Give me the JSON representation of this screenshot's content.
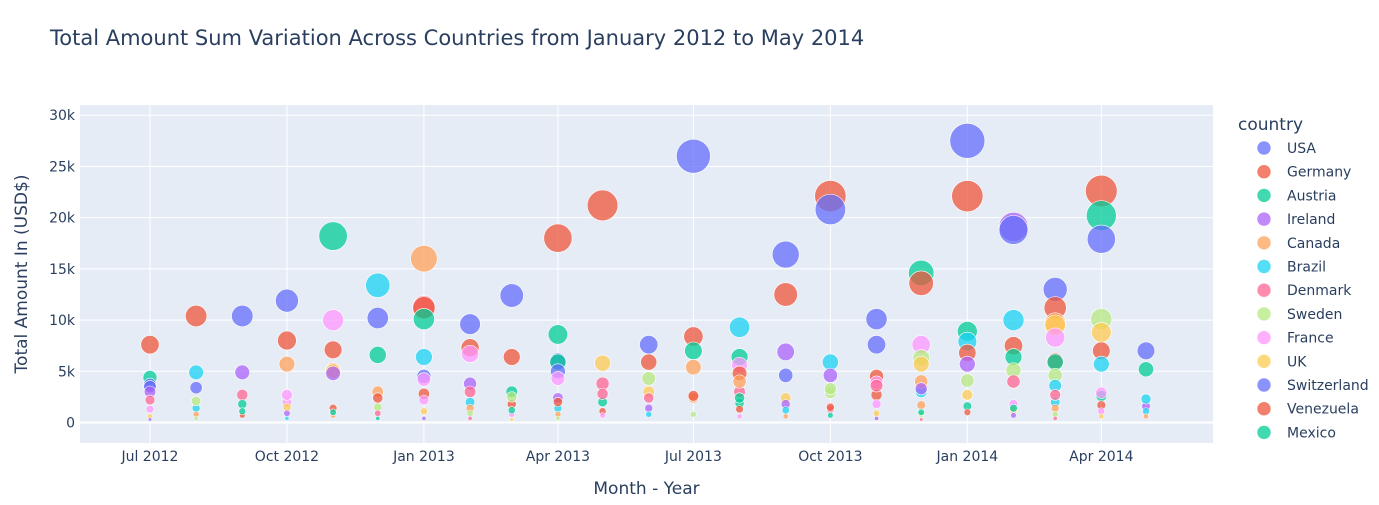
{
  "chart_data": {
    "type": "scatter",
    "title": "Total Amount Sum Variation Across Countries from January 2012 to May 2014",
    "xlabel": "Month - Year",
    "ylabel": "Total Amount In (USD$)",
    "xlim": [
      "2012-05-15",
      "2014-06-15"
    ],
    "ylim": [
      -2000,
      31000
    ],
    "x_ticks": [
      {
        "x": "2012-07-01",
        "label": "Jul 2012"
      },
      {
        "x": "2012-10-01",
        "label": "Oct 2012"
      },
      {
        "x": "2013-01-01",
        "label": "Jan 2013"
      },
      {
        "x": "2013-04-01",
        "label": "Apr 2013"
      },
      {
        "x": "2013-07-01",
        "label": "Jul 2013"
      },
      {
        "x": "2013-10-01",
        "label": "Oct 2013"
      },
      {
        "x": "2014-01-01",
        "label": "Jan 2014"
      },
      {
        "x": "2014-04-01",
        "label": "Apr 2014"
      }
    ],
    "y_ticks": [
      {
        "y": 0,
        "label": "0"
      },
      {
        "y": 5000,
        "label": "5k"
      },
      {
        "y": 10000,
        "label": "10k"
      },
      {
        "y": 15000,
        "label": "15k"
      },
      {
        "y": 20000,
        "label": "20k"
      },
      {
        "y": 25000,
        "label": "25k"
      },
      {
        "y": 30000,
        "label": "30k"
      }
    ],
    "grid": true,
    "marker_size": "proportional to value",
    "legend": {
      "title": "country",
      "placement": "right"
    },
    "series": [
      {
        "name": "USA",
        "color": "#636efa",
        "points": [
          [
            "2012-07-01",
            3500
          ],
          [
            "2013-01-01",
            4500
          ],
          [
            "2013-04-01",
            5000
          ],
          [
            "2013-07-01",
            26000
          ],
          [
            "2013-09-01",
            4600
          ],
          [
            "2013-10-01",
            20800
          ],
          [
            "2013-11-01",
            7600
          ],
          [
            "2014-01-01",
            27500
          ],
          [
            "2014-02-01",
            18800
          ],
          [
            "2014-04-01",
            17900
          ]
        ]
      },
      {
        "name": "Germany",
        "color": "#EF553B",
        "points": [
          [
            "2012-07-01",
            7600
          ],
          [
            "2012-08-01",
            10400
          ],
          [
            "2012-10-01",
            8000
          ],
          [
            "2012-11-01",
            7100
          ],
          [
            "2013-01-01",
            11200
          ],
          [
            "2013-02-01",
            7300
          ],
          [
            "2013-03-01",
            6400
          ],
          [
            "2013-04-01",
            18000
          ],
          [
            "2013-05-01",
            21200
          ],
          [
            "2013-06-01",
            5900
          ],
          [
            "2013-07-01",
            8400
          ],
          [
            "2013-09-01",
            12500
          ],
          [
            "2013-10-01",
            22100
          ],
          [
            "2013-12-01",
            13600
          ],
          [
            "2014-01-01",
            22100
          ],
          [
            "2014-02-01",
            7500
          ],
          [
            "2014-03-01",
            11200
          ],
          [
            "2014-04-01",
            22600
          ]
        ]
      },
      {
        "name": "Austria",
        "color": "#00cc96",
        "points": [
          [
            "2012-07-01",
            4400
          ],
          [
            "2012-11-01",
            18200
          ],
          [
            "2012-12-01",
            6600
          ],
          [
            "2013-01-01",
            10100
          ],
          [
            "2013-04-01",
            8600
          ],
          [
            "2013-07-01",
            7000
          ],
          [
            "2013-08-01",
            6400
          ],
          [
            "2013-12-01",
            14600
          ],
          [
            "2014-01-01",
            8900
          ],
          [
            "2014-02-01",
            6400
          ],
          [
            "2014-04-01",
            20200
          ],
          [
            "2014-05-01",
            5200
          ]
        ]
      },
      {
        "name": "Ireland",
        "color": "#ab63fa",
        "points": [
          [
            "2012-07-01",
            3000
          ],
          [
            "2012-09-01",
            4900
          ],
          [
            "2012-11-01",
            4800
          ],
          [
            "2013-02-01",
            3800
          ],
          [
            "2013-09-01",
            6900
          ],
          [
            "2013-10-01",
            4600
          ],
          [
            "2013-12-01",
            3300
          ],
          [
            "2014-01-01",
            5700
          ],
          [
            "2014-02-01",
            19100
          ]
        ]
      },
      {
        "name": "Canada",
        "color": "#FFA15A",
        "points": [
          [
            "2012-10-01",
            5700
          ],
          [
            "2012-11-01",
            5100
          ],
          [
            "2012-12-01",
            3000
          ],
          [
            "2013-01-01",
            16000
          ],
          [
            "2013-07-01",
            5400
          ],
          [
            "2013-08-01",
            4000
          ],
          [
            "2013-12-01",
            4000
          ],
          [
            "2014-03-01",
            9700
          ]
        ]
      },
      {
        "name": "Brazil",
        "color": "#19d3f3",
        "points": [
          [
            "2012-08-01",
            4900
          ],
          [
            "2012-12-01",
            13400
          ],
          [
            "2013-01-01",
            6400
          ],
          [
            "2013-08-01",
            9300
          ],
          [
            "2013-10-01",
            5900
          ],
          [
            "2014-01-01",
            7900
          ],
          [
            "2014-02-01",
            10000
          ],
          [
            "2014-03-01",
            3600
          ],
          [
            "2014-04-01",
            5700
          ],
          [
            "2014-05-01",
            2300
          ]
        ]
      },
      {
        "name": "Denmark",
        "color": "#FF6692",
        "points": [
          [
            "2012-07-01",
            2200
          ],
          [
            "2013-01-01",
            11300
          ],
          [
            "2013-02-01",
            3000
          ],
          [
            "2013-05-01",
            2800
          ],
          [
            "2013-06-01",
            2400
          ],
          [
            "2013-11-01",
            3600
          ],
          [
            "2014-02-01",
            4000
          ],
          [
            "2014-03-01",
            2700
          ]
        ]
      },
      {
        "name": "Sweden",
        "color": "#B6E880",
        "points": [
          [
            "2012-08-01",
            2100
          ],
          [
            "2013-03-01",
            2500
          ],
          [
            "2013-06-01",
            4300
          ],
          [
            "2013-10-01",
            3300
          ],
          [
            "2013-12-01",
            6300
          ],
          [
            "2014-01-01",
            4100
          ],
          [
            "2014-02-01",
            5100
          ],
          [
            "2014-03-01",
            4600
          ],
          [
            "2014-04-01",
            10100
          ]
        ]
      },
      {
        "name": "France",
        "color": "#FF97FF",
        "points": [
          [
            "2012-10-01",
            2700
          ],
          [
            "2012-11-01",
            10000
          ],
          [
            "2013-01-01",
            4200
          ],
          [
            "2013-02-01",
            6700
          ],
          [
            "2013-04-01",
            4300
          ],
          [
            "2013-08-01",
            5600
          ],
          [
            "2013-11-01",
            3900
          ],
          [
            "2013-12-01",
            7600
          ],
          [
            "2014-03-01",
            8300
          ],
          [
            "2014-04-01",
            2900
          ]
        ]
      },
      {
        "name": "UK",
        "color": "#FECB52",
        "points": [
          [
            "2012-11-01",
            5000
          ],
          [
            "2013-05-01",
            5800
          ],
          [
            "2013-12-01",
            5700
          ],
          [
            "2014-01-01",
            2700
          ],
          [
            "2014-03-01",
            9500
          ],
          [
            "2014-04-01",
            8800
          ]
        ]
      },
      {
        "name": "Switzerland",
        "color": "#636efa",
        "points": [
          [
            "2012-07-01",
            3700
          ],
          [
            "2012-08-01",
            3400
          ],
          [
            "2012-09-01",
            10400
          ],
          [
            "2012-10-01",
            11900
          ],
          [
            "2012-12-01",
            10200
          ],
          [
            "2013-02-01",
            9600
          ],
          [
            "2013-03-01",
            12400
          ],
          [
            "2013-04-01",
            6000
          ],
          [
            "2013-06-01",
            7600
          ],
          [
            "2013-09-01",
            16400
          ],
          [
            "2013-11-01",
            10100
          ],
          [
            "2014-03-01",
            13000
          ],
          [
            "2014-05-01",
            7000
          ]
        ]
      },
      {
        "name": "Venezuela",
        "color": "#EF553B",
        "points": [
          [
            "2012-11-01",
            1400
          ],
          [
            "2012-12-01",
            2400
          ],
          [
            "2013-04-01",
            2000
          ],
          [
            "2013-07-01",
            2600
          ],
          [
            "2013-08-01",
            4800
          ],
          [
            "2013-10-01",
            1500
          ],
          [
            "2013-11-01",
            4500
          ],
          [
            "2014-01-01",
            6800
          ],
          [
            "2014-03-01",
            6000
          ],
          [
            "2014-04-01",
            7000
          ]
        ]
      },
      {
        "name": "Mexico",
        "color": "#00cc96",
        "points": [
          [
            "2012-09-01",
            1100
          ],
          [
            "2012-11-01",
            1000
          ],
          [
            "2013-03-01",
            1200
          ],
          [
            "2013-04-01",
            5900
          ],
          [
            "2013-08-01",
            2400
          ],
          [
            "2013-12-01",
            1000
          ],
          [
            "2014-02-01",
            1400
          ],
          [
            "2014-03-01",
            5900
          ]
        ]
      }
    ],
    "minor_points": [
      [
        "2012-07-01",
        1300
      ],
      [
        "2012-07-01",
        600
      ],
      [
        "2012-07-01",
        300
      ],
      [
        "2012-08-01",
        1400
      ],
      [
        "2012-08-01",
        800
      ],
      [
        "2012-08-01",
        400
      ],
      [
        "2012-09-01",
        2700
      ],
      [
        "2012-09-01",
        1800
      ],
      [
        "2012-09-01",
        700
      ],
      [
        "2012-10-01",
        2000
      ],
      [
        "2012-10-01",
        1500
      ],
      [
        "2012-10-01",
        900
      ],
      [
        "2012-10-01",
        400
      ],
      [
        "2012-11-01",
        700
      ],
      [
        "2012-12-01",
        1500
      ],
      [
        "2012-12-01",
        900
      ],
      [
        "2012-12-01",
        400
      ],
      [
        "2013-01-01",
        2800
      ],
      [
        "2013-01-01",
        2200
      ],
      [
        "2013-01-01",
        1100
      ],
      [
        "2013-01-01",
        400
      ],
      [
        "2013-02-01",
        2000
      ],
      [
        "2013-02-01",
        1400
      ],
      [
        "2013-02-01",
        900
      ],
      [
        "2013-02-01",
        400
      ],
      [
        "2013-03-01",
        3000
      ],
      [
        "2013-03-01",
        1800
      ],
      [
        "2013-03-01",
        800
      ],
      [
        "2013-03-01",
        300
      ],
      [
        "2013-04-01",
        2400
      ],
      [
        "2013-04-01",
        1400
      ],
      [
        "2013-04-01",
        800
      ],
      [
        "2013-04-01",
        400
      ],
      [
        "2013-05-01",
        3800
      ],
      [
        "2013-05-01",
        2000
      ],
      [
        "2013-05-01",
        1100
      ],
      [
        "2013-05-01",
        700
      ],
      [
        "2013-06-01",
        3000
      ],
      [
        "2013-06-01",
        1400
      ],
      [
        "2013-06-01",
        800
      ],
      [
        "2013-07-01",
        2400
      ],
      [
        "2013-07-01",
        800
      ],
      [
        "2013-08-01",
        3000
      ],
      [
        "2013-08-01",
        1900
      ],
      [
        "2013-08-01",
        1300
      ],
      [
        "2013-08-01",
        600
      ],
      [
        "2013-09-01",
        2400
      ],
      [
        "2013-09-01",
        1800
      ],
      [
        "2013-09-01",
        1200
      ],
      [
        "2013-09-01",
        600
      ],
      [
        "2013-10-01",
        2900
      ],
      [
        "2013-10-01",
        1300
      ],
      [
        "2013-10-01",
        700
      ],
      [
        "2013-11-01",
        2700
      ],
      [
        "2013-11-01",
        1800
      ],
      [
        "2013-11-01",
        900
      ],
      [
        "2013-11-01",
        400
      ],
      [
        "2013-12-01",
        3000
      ],
      [
        "2013-12-01",
        1700
      ],
      [
        "2013-12-01",
        800
      ],
      [
        "2013-12-01",
        300
      ],
      [
        "2014-01-01",
        1600
      ],
      [
        "2014-01-01",
        1000
      ],
      [
        "2014-02-01",
        1800
      ],
      [
        "2014-02-01",
        1200
      ],
      [
        "2014-02-01",
        700
      ],
      [
        "2014-03-01",
        2000
      ],
      [
        "2014-03-01",
        1400
      ],
      [
        "2014-03-01",
        800
      ],
      [
        "2014-03-01",
        400
      ],
      [
        "2014-04-01",
        2600
      ],
      [
        "2014-04-01",
        1700
      ],
      [
        "2014-04-01",
        1100
      ],
      [
        "2014-04-01",
        600
      ],
      [
        "2014-05-01",
        1600
      ],
      [
        "2014-05-01",
        1100
      ],
      [
        "2014-05-01",
        600
      ]
    ]
  }
}
